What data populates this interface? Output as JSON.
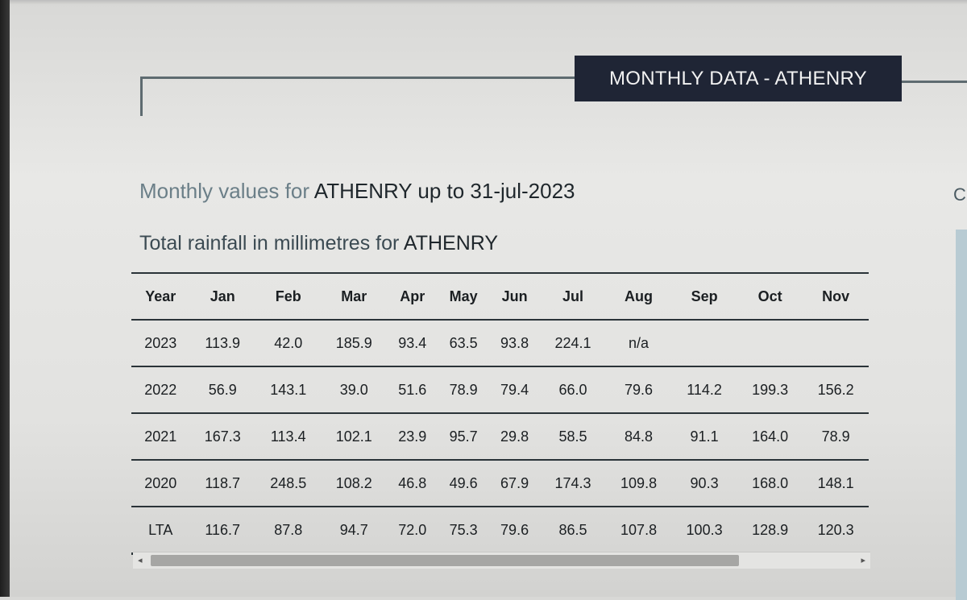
{
  "section_header": "MONTHLY DATA - ATHENRY",
  "subtitle": {
    "prefix": "Monthly values for ",
    "station": "ATHENRY",
    "suffix": " up to 31-jul-2023"
  },
  "table_title": {
    "prefix": "Total rainfall in millimetres for ",
    "station": "ATHENRY"
  },
  "right_edge_text": "C",
  "table": {
    "headers": [
      "Year",
      "Jan",
      "Feb",
      "Mar",
      "Apr",
      "May",
      "Jun",
      "Jul",
      "Aug",
      "Sep",
      "Oct",
      "Nov"
    ],
    "rows": [
      [
        "2023",
        "113.9",
        "42.0",
        "185.9",
        "93.4",
        "63.5",
        "93.8",
        "224.1",
        "n/a",
        "",
        "",
        ""
      ],
      [
        "2022",
        "56.9",
        "143.1",
        "39.0",
        "51.6",
        "78.9",
        "79.4",
        "66.0",
        "79.6",
        "114.2",
        "199.3",
        "156.2"
      ],
      [
        "2021",
        "167.3",
        "113.4",
        "102.1",
        "23.9",
        "95.7",
        "29.8",
        "58.5",
        "84.8",
        "91.1",
        "164.0",
        "78.9"
      ],
      [
        "2020",
        "118.7",
        "248.5",
        "108.2",
        "46.8",
        "49.6",
        "67.9",
        "174.3",
        "109.8",
        "90.3",
        "168.0",
        "148.1"
      ],
      [
        "LTA",
        "116.7",
        "87.8",
        "94.7",
        "72.0",
        "75.3",
        "79.6",
        "86.5",
        "107.8",
        "100.3",
        "128.9",
        "120.3"
      ]
    ]
  },
  "scrollbar": {
    "left_arrow": "◂",
    "right_arrow": "▸"
  },
  "colors": {
    "header_bg": "#1f2535",
    "header_text": "#f2f2f2",
    "accent_line": "#5e6b70",
    "subtitle_muted": "#6b7f88"
  }
}
